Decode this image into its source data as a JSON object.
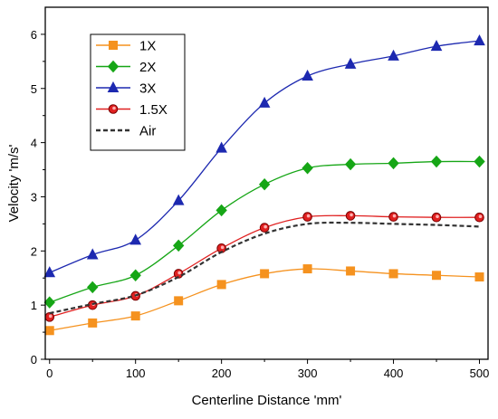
{
  "chart_data": {
    "type": "line",
    "title": "",
    "xlabel": "Centerline Distance 'mm'",
    "ylabel": "Velocity 'm/s'",
    "xlim": [
      -5,
      510
    ],
    "ylim": [
      0,
      6.5
    ],
    "xticks": [
      0,
      100,
      200,
      300,
      400,
      500
    ],
    "yticks": [
      0,
      1,
      2,
      3,
      4,
      5,
      6
    ],
    "grid": false,
    "legend_position": "top-left",
    "x": [
      0,
      50,
      100,
      150,
      200,
      250,
      300,
      350,
      400,
      450,
      500
    ],
    "series": [
      {
        "name": "1X",
        "color": "#f5921f",
        "marker": "square",
        "dashed": false,
        "values": [
          0.53,
          0.67,
          0.8,
          1.08,
          1.38,
          1.58,
          1.67,
          1.63,
          1.58,
          1.55,
          1.52
        ]
      },
      {
        "name": "2X",
        "color": "#16a616",
        "marker": "diamond",
        "dashed": false,
        "values": [
          1.05,
          1.33,
          1.55,
          2.1,
          2.75,
          3.23,
          3.53,
          3.6,
          3.62,
          3.65,
          3.65
        ]
      },
      {
        "name": "3X",
        "color": "#1d29b0",
        "marker": "triangle",
        "dashed": false,
        "values": [
          1.6,
          1.93,
          2.2,
          2.93,
          3.9,
          4.73,
          5.23,
          5.45,
          5.6,
          5.78,
          5.88
        ]
      },
      {
        "name": "1.5X",
        "color": "#e02020",
        "marker": "circle",
        "dashed": false,
        "values": [
          0.78,
          1.0,
          1.17,
          1.58,
          2.05,
          2.43,
          2.63,
          2.65,
          2.63,
          2.62,
          2.62
        ]
      },
      {
        "name": "Air",
        "color": "#333333",
        "marker": "none",
        "dashed": true,
        "values": [
          0.85,
          1.02,
          1.18,
          1.52,
          1.98,
          2.32,
          2.5,
          2.52,
          2.5,
          2.48,
          2.45
        ]
      }
    ]
  }
}
